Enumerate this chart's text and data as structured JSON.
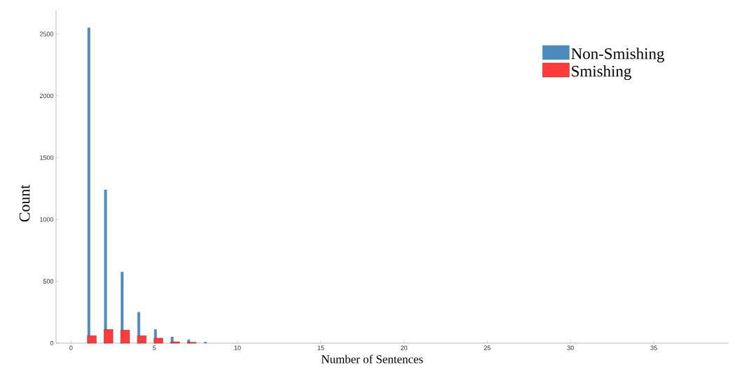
{
  "chart_data": {
    "type": "bar",
    "xlabel": "Number of Sentences",
    "ylabel": "Count",
    "series": [
      {
        "name": "Non-Smishing",
        "color": "#4b8bbe",
        "x": [
          1.07,
          2.07,
          3.07,
          4.07,
          5.07,
          6.07,
          7.07,
          8.07
        ],
        "values": [
          2550,
          1240,
          575,
          250,
          110,
          50,
          28,
          9
        ]
      },
      {
        "name": "Smishing",
        "color": "#ff3b3b",
        "x": [
          1.25,
          2.25,
          3.25,
          4.25,
          5.25,
          6.25,
          7.25
        ],
        "values": [
          60,
          110,
          105,
          60,
          40,
          11,
          7
        ]
      }
    ],
    "xlim": [
      -0.9,
      39.5
    ],
    "ylim": [
      0,
      2690
    ],
    "xticks": [
      0,
      5,
      10,
      15,
      20,
      25,
      30,
      35
    ],
    "yticks": [
      0,
      500,
      1000,
      1500,
      2000,
      2500
    ],
    "legend": "top right",
    "grid": false
  }
}
